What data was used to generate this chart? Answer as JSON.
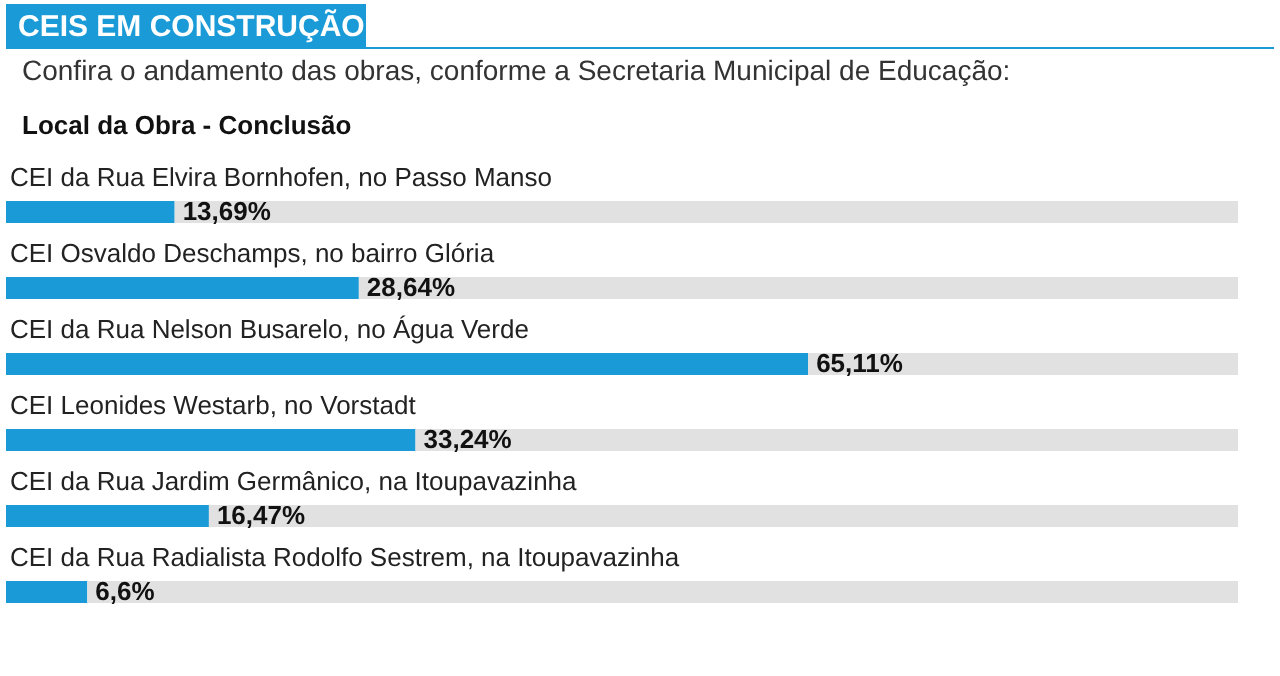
{
  "chart_data": {
    "type": "bar",
    "orientation": "horizontal",
    "stacked": true,
    "title": "CEIS EM CONSTRUÇÃO",
    "subtitle": "Confira o andamento das obras, conforme a Secretaria Municipal de Educação:",
    "ylabel": "Local da Obra - Conclusão",
    "categories": [
      "CEI da Rua Elvira Bornhofen, no Passo Manso",
      "CEI Osvaldo Deschamps, no bairro Glória",
      "CEI da Rua Nelson Busarelo, no Água Verde",
      "CEI Leonides Westarb, no Vorstadt",
      "CEI da Rua Jardim Germânico, na Itoupavazinha",
      "CEI da Rua Radialista Rodolfo Sestrem, na Itoupavazinha"
    ],
    "xlim": [
      0,
      100
    ],
    "tick_labels": false,
    "legend": false,
    "series": [
      {
        "color": "#1a9ad6",
        "values": [
          13.69,
          28.64,
          65.11,
          33.24,
          16.47,
          6.6
        ],
        "value_labels": [
          "13,69%",
          "28,64%",
          "65,11%",
          "33,24%",
          "16,47%",
          "6,6%"
        ]
      },
      {
        "color": "#e1e1e1",
        "values": [
          86.31,
          71.36,
          34.89,
          66.76,
          83.53,
          93.4
        ]
      }
    ]
  }
}
